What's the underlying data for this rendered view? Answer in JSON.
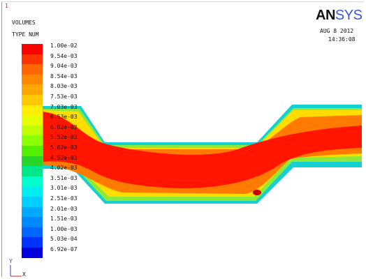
{
  "window_number": "1",
  "plot_title": "VOLUMES",
  "plot_subtitle": "TYPE NUM",
  "logo": {
    "part1": "AN",
    "part2": "SYS"
  },
  "date": "AUG  8 2012",
  "time": "14:36:08",
  "legend": {
    "labels": [
      "1.00e-02",
      "9.54e-03",
      "9.04e-03",
      "8.54e-03",
      "8.03e-03",
      "7.53e-03",
      "7.03e-03",
      "6.53e-03",
      "6.02e-03",
      "5.52e-03",
      "5.02e-03",
      "4.52e-03",
      "4.02e-03",
      "3.51e-03",
      "3.01e-03",
      "2.51e-03",
      "2.01e-03",
      "1.51e-03",
      "1.00e-03",
      "5.03e-04",
      "6.92e-07"
    ],
    "colors": [
      "#ff0000",
      "#ff3300",
      "#ff6600",
      "#ff8800",
      "#ffa600",
      "#ffc800",
      "#ffee00",
      "#e6ff00",
      "#c0ff00",
      "#8cff00",
      "#55ee00",
      "#2ad52a",
      "#00e68a",
      "#00ffcc",
      "#00eeee",
      "#00cfff",
      "#00a8ff",
      "#0088ff",
      "#0066ff",
      "#0033ff",
      "#0000dd"
    ]
  },
  "axes": {
    "y": "Y",
    "x": "X"
  }
}
